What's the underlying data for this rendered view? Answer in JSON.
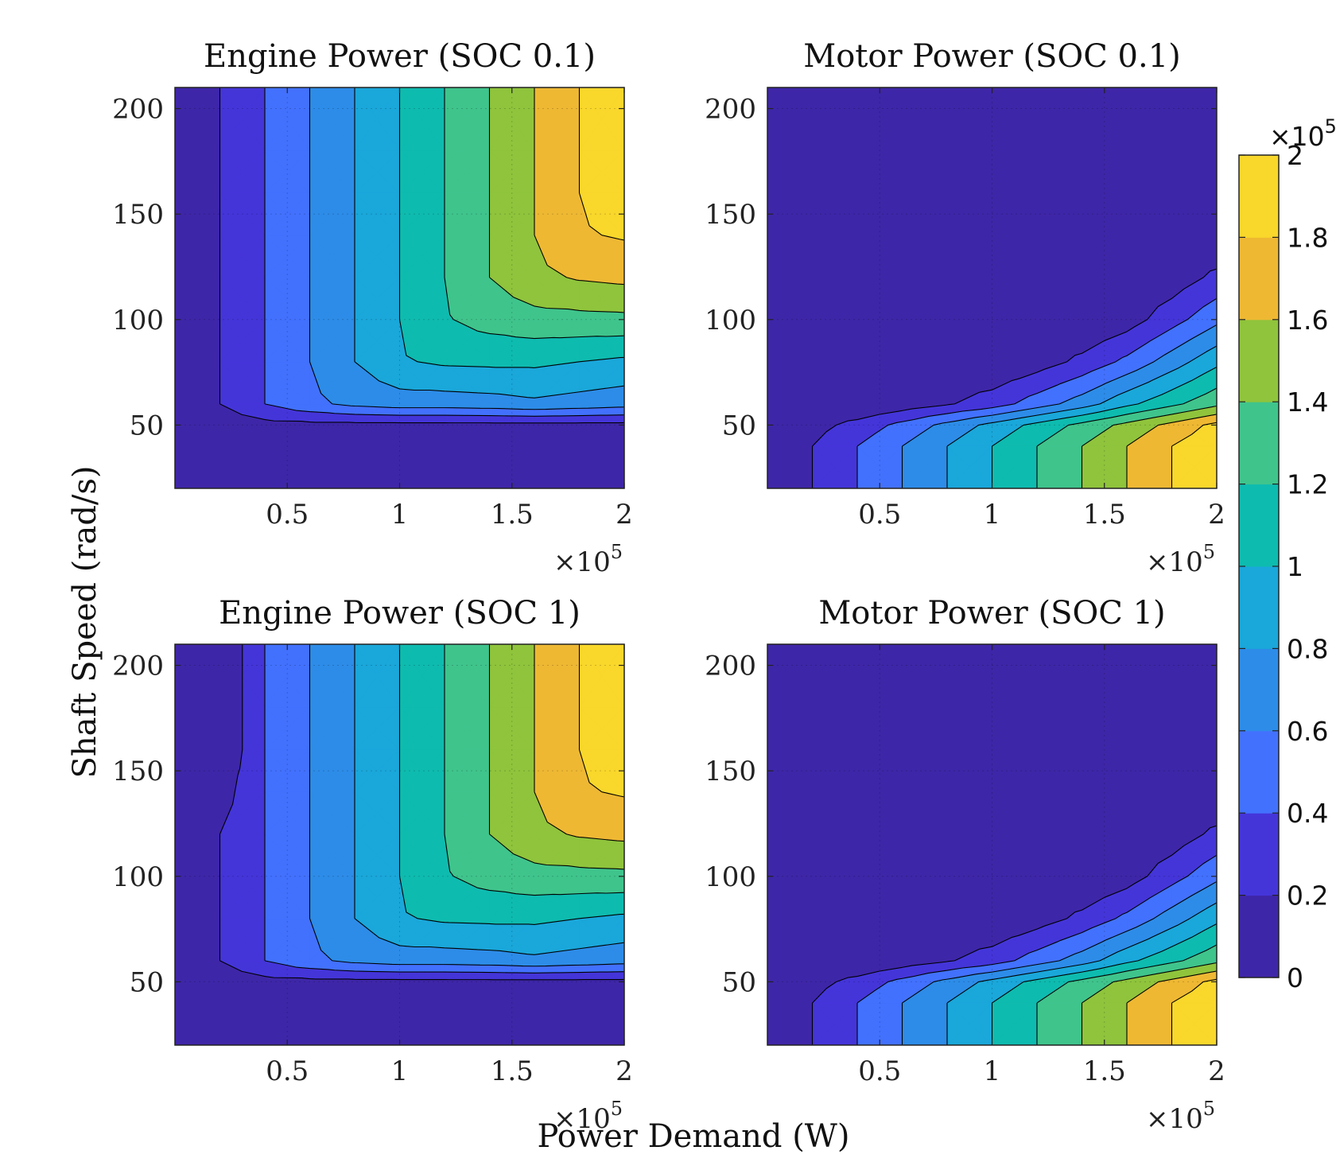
{
  "figure": {
    "xlabel": "Power Demand (W)",
    "ylabel": "Shaft Speed (rad/s)",
    "x_multiplier": "×10",
    "x_multiplier_exp": "5",
    "colorbar": {
      "range": [
        0,
        200000
      ],
      "multiplier": "×10",
      "multiplier_exp": "5",
      "ticks": [
        "0",
        "0.2",
        "0.4",
        "0.6",
        "0.8",
        "1",
        "1.2",
        "1.4",
        "1.6",
        "1.8",
        "2"
      ],
      "levels": 10,
      "colors": [
        "#3e26a8",
        "#4435d9",
        "#4271fe",
        "#2d8ce8",
        "#1aa7da",
        "#0ebbaf",
        "#3fc48c",
        "#8fc43c",
        "#eeb833",
        "#f9d72b"
      ]
    },
    "x_ticks": [
      "0.5",
      "1",
      "1.5",
      "2"
    ],
    "y_ticks": [
      "50",
      "100",
      "150",
      "200"
    ]
  },
  "chart_data": [
    {
      "type": "contourf",
      "title": "Engine Power (SOC 0.1)",
      "xlim": [
        0,
        200000
      ],
      "ylim": [
        20,
        210
      ],
      "x_ticks": [
        50000,
        100000,
        150000,
        200000
      ],
      "y_ticks": [
        50,
        100,
        150,
        200
      ],
      "grid": true,
      "x": [
        0,
        20000,
        40000,
        60000,
        80000,
        100000,
        120000,
        140000,
        160000,
        180000,
        200000
      ],
      "y": [
        20,
        40,
        50,
        60,
        80,
        100,
        120,
        140,
        160,
        180,
        210
      ],
      "z": [
        [
          0,
          0,
          0,
          0,
          0,
          0,
          0,
          0,
          0,
          0,
          0
        ],
        [
          0,
          0,
          0,
          0,
          0,
          0,
          0,
          0,
          0,
          0,
          0
        ],
        [
          0,
          8000,
          13000,
          14000,
          14000,
          14000,
          14000,
          14000,
          14000,
          14000,
          14000
        ],
        [
          0,
          20000,
          40000,
          55000,
          65000,
          70000,
          70000,
          72000,
          76000,
          72000,
          68000
        ],
        [
          0,
          20000,
          40000,
          60000,
          80000,
          98000,
          103000,
          104000,
          104000,
          100000,
          96000
        ],
        [
          0,
          20000,
          40000,
          60000,
          80000,
          100000,
          118000,
          128000,
          133000,
          134000,
          135000
        ],
        [
          0,
          20000,
          40000,
          60000,
          80000,
          100000,
          120000,
          140000,
          155000,
          162000,
          165000
        ],
        [
          0,
          20000,
          40000,
          60000,
          80000,
          100000,
          120000,
          140000,
          160000,
          178000,
          182000
        ],
        [
          0,
          20000,
          40000,
          60000,
          80000,
          100000,
          120000,
          140000,
          160000,
          180000,
          190000
        ],
        [
          0,
          20000,
          40000,
          60000,
          80000,
          100000,
          120000,
          140000,
          160000,
          180000,
          195000
        ],
        [
          0,
          20000,
          40000,
          60000,
          80000,
          100000,
          120000,
          140000,
          160000,
          180000,
          200000
        ]
      ]
    },
    {
      "type": "contourf",
      "title": "Motor Power (SOC 0.1)",
      "xlim": [
        0,
        200000
      ],
      "ylim": [
        20,
        210
      ],
      "x_ticks": [
        50000,
        100000,
        150000,
        200000
      ],
      "y_ticks": [
        50,
        100,
        150,
        200
      ],
      "grid": true,
      "x": [
        0,
        20000,
        40000,
        60000,
        80000,
        100000,
        120000,
        140000,
        160000,
        180000,
        200000
      ],
      "y": [
        20,
        40,
        50,
        60,
        80,
        100,
        120,
        140,
        160,
        180,
        210
      ],
      "z": [
        [
          0,
          20000,
          40000,
          60000,
          80000,
          100000,
          120000,
          140000,
          160000,
          180000,
          200000
        ],
        [
          0,
          20000,
          40000,
          60000,
          80000,
          100000,
          120000,
          140000,
          160000,
          180000,
          195000
        ],
        [
          0,
          12000,
          27000,
          46000,
          66000,
          86000,
          106000,
          126000,
          146000,
          166000,
          186000
        ],
        [
          0,
          0,
          0,
          8000,
          18000,
          30000,
          50000,
          70000,
          95000,
          115000,
          135000
        ],
        [
          0,
          0,
          0,
          0,
          0,
          0,
          10000,
          25000,
          45000,
          70000,
          95000
        ],
        [
          0,
          0,
          0,
          0,
          0,
          0,
          0,
          0,
          10000,
          32000,
          55000
        ],
        [
          0,
          0,
          0,
          0,
          0,
          0,
          0,
          0,
          0,
          8000,
          25000
        ],
        [
          0,
          0,
          0,
          0,
          0,
          0,
          0,
          0,
          0,
          0,
          0
        ],
        [
          0,
          0,
          0,
          0,
          0,
          0,
          0,
          0,
          0,
          0,
          0
        ],
        [
          0,
          0,
          0,
          0,
          0,
          0,
          0,
          0,
          0,
          0,
          0
        ],
        [
          0,
          0,
          0,
          0,
          0,
          0,
          0,
          0,
          0,
          0,
          0
        ]
      ]
    },
    {
      "type": "contourf",
      "title": "Engine Power (SOC 1)",
      "xlim": [
        0,
        200000
      ],
      "ylim": [
        20,
        210
      ],
      "x_ticks": [
        50000,
        100000,
        150000,
        200000
      ],
      "y_ticks": [
        50,
        100,
        150,
        200
      ],
      "grid": true,
      "x": [
        0,
        20000,
        40000,
        60000,
        80000,
        100000,
        120000,
        140000,
        160000,
        180000,
        200000
      ],
      "y": [
        20,
        40,
        50,
        60,
        80,
        100,
        120,
        140,
        160,
        180,
        210
      ],
      "z": [
        [
          0,
          0,
          0,
          0,
          0,
          0,
          0,
          0,
          0,
          0,
          0
        ],
        [
          0,
          0,
          0,
          0,
          0,
          0,
          0,
          0,
          0,
          0,
          0
        ],
        [
          0,
          8000,
          13000,
          14000,
          14000,
          14000,
          14000,
          14000,
          14000,
          14000,
          14000
        ],
        [
          0,
          20000,
          40000,
          55000,
          65000,
          70000,
          70000,
          72000,
          76000,
          72000,
          68000
        ],
        [
          0,
          20000,
          40000,
          60000,
          80000,
          98000,
          103000,
          104000,
          104000,
          100000,
          96000
        ],
        [
          0,
          20000,
          40000,
          60000,
          80000,
          100000,
          118000,
          128000,
          133000,
          134000,
          135000
        ],
        [
          0,
          20000,
          40000,
          60000,
          80000,
          100000,
          120000,
          140000,
          155000,
          162000,
          165000
        ],
        [
          0,
          10000,
          40000,
          60000,
          80000,
          100000,
          120000,
          140000,
          160000,
          178000,
          182000
        ],
        [
          0,
          0,
          40000,
          60000,
          80000,
          100000,
          120000,
          140000,
          160000,
          180000,
          190000
        ],
        [
          0,
          0,
          40000,
          60000,
          80000,
          100000,
          120000,
          140000,
          160000,
          180000,
          195000
        ],
        [
          0,
          0,
          40000,
          60000,
          80000,
          100000,
          120000,
          140000,
          160000,
          180000,
          200000
        ]
      ]
    },
    {
      "type": "contourf",
      "title": "Motor Power (SOC 1)",
      "xlim": [
        0,
        200000
      ],
      "ylim": [
        20,
        210
      ],
      "x_ticks": [
        50000,
        100000,
        150000,
        200000
      ],
      "y_ticks": [
        50,
        100,
        150,
        200
      ],
      "grid": true,
      "x": [
        0,
        20000,
        40000,
        60000,
        80000,
        100000,
        120000,
        140000,
        160000,
        180000,
        200000
      ],
      "y": [
        20,
        40,
        50,
        60,
        80,
        100,
        120,
        140,
        160,
        180,
        210
      ],
      "z": [
        [
          0,
          20000,
          40000,
          60000,
          80000,
          100000,
          120000,
          140000,
          160000,
          180000,
          200000
        ],
        [
          0,
          20000,
          40000,
          60000,
          80000,
          100000,
          120000,
          140000,
          160000,
          180000,
          195000
        ],
        [
          0,
          12000,
          27000,
          46000,
          66000,
          86000,
          106000,
          126000,
          146000,
          166000,
          186000
        ],
        [
          0,
          0,
          0,
          8000,
          18000,
          30000,
          50000,
          70000,
          95000,
          115000,
          135000
        ],
        [
          0,
          0,
          0,
          0,
          0,
          0,
          10000,
          25000,
          45000,
          70000,
          95000
        ],
        [
          0,
          0,
          0,
          0,
          0,
          0,
          0,
          0,
          10000,
          32000,
          55000
        ],
        [
          0,
          0,
          0,
          0,
          0,
          0,
          0,
          0,
          0,
          8000,
          25000
        ],
        [
          0,
          0,
          0,
          0,
          0,
          0,
          0,
          0,
          0,
          0,
          0
        ],
        [
          0,
          0,
          0,
          0,
          0,
          0,
          0,
          0,
          0,
          0,
          0
        ],
        [
          0,
          0,
          0,
          0,
          0,
          0,
          0,
          0,
          0,
          0,
          0
        ],
        [
          0,
          0,
          0,
          0,
          0,
          0,
          0,
          0,
          0,
          0,
          0
        ]
      ]
    }
  ]
}
